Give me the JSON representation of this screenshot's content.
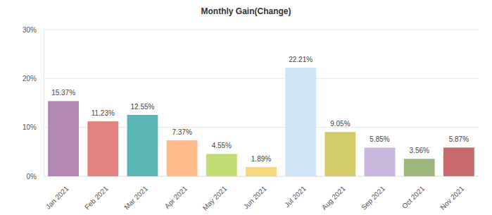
{
  "chart_data": {
    "type": "bar",
    "title": "Monthly Gain(Change)",
    "categories": [
      "Jan 2021",
      "Feb 2021",
      "Mar 2021",
      "Apr 2021",
      "May 2021",
      "Jun 2021",
      "Jul 2021",
      "Aug 2021",
      "Sep 2021",
      "Oct 2021",
      "Nov 2021"
    ],
    "values": [
      15.37,
      11.23,
      12.55,
      7.37,
      4.55,
      1.89,
      22.21,
      9.05,
      5.85,
      3.56,
      5.87
    ],
    "value_labels": [
      "15.37%",
      "11.23%",
      "12.55%",
      "7.37%",
      "4.55%",
      "1.89%",
      "22.21%",
      "9.05%",
      "5.85%",
      "3.56%",
      "5.87%"
    ],
    "colors": [
      "#b387b3",
      "#e38380",
      "#5ab5b5",
      "#ffba8d",
      "#c0dc72",
      "#f7d97a",
      "#cfe6f7",
      "#d2cb6a",
      "#c8b6dc",
      "#9cb87c",
      "#c96a6e"
    ],
    "ylim": [
      0,
      30
    ],
    "yticks": [
      {
        "value": 0,
        "label": "0%"
      },
      {
        "value": 10,
        "label": "10%"
      },
      {
        "value": 20,
        "label": "20%"
      },
      {
        "value": 30,
        "label": "30%"
      }
    ],
    "grid": true,
    "data_labels": true
  }
}
